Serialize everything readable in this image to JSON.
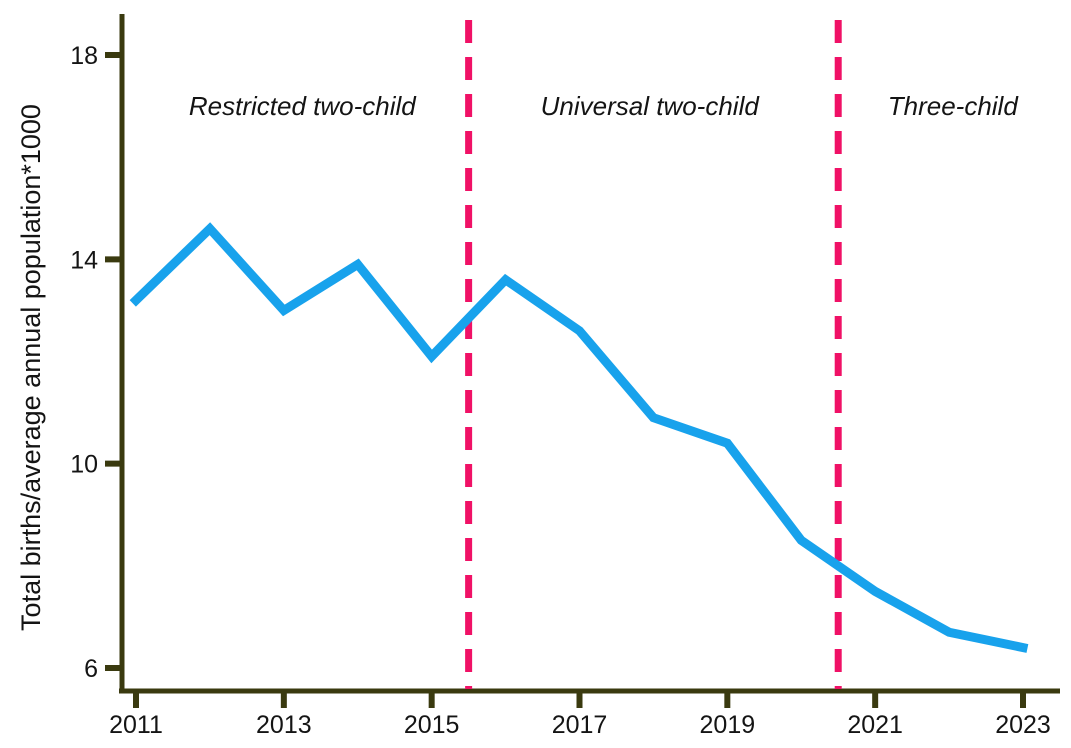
{
  "chart_data": {
    "type": "line",
    "title": "",
    "xlabel": "",
    "ylabel": "Total births/average annual population*1000",
    "x": [
      2011,
      2012,
      2013,
      2014,
      2015,
      2016,
      2017,
      2018,
      2019,
      2020,
      2021,
      2022,
      2023
    ],
    "series": [
      {
        "name": "total-births-per-1000-population",
        "values": [
          13.2,
          14.6,
          13.0,
          13.9,
          12.1,
          13.6,
          12.6,
          10.9,
          10.4,
          8.5,
          7.5,
          6.7,
          6.4
        ]
      }
    ],
    "xticks": [
      2011,
      2013,
      2015,
      2017,
      2019,
      2021,
      2023
    ],
    "yticks": [
      6,
      10,
      14,
      18
    ],
    "xlim": [
      2010.8,
      2023.5
    ],
    "ylim": [
      5.55,
      18.8
    ],
    "grid": false,
    "legend": "none",
    "policy_lines": [
      {
        "x": 2015.5
      },
      {
        "x": 2020.5
      }
    ],
    "annotations": [
      {
        "text": "Restricted two-child",
        "x": 2013.25,
        "y": 17.0
      },
      {
        "text": "Universal two-child",
        "x": 2017.95,
        "y": 17.0
      },
      {
        "text": "Three-child",
        "x": 2022.05,
        "y": 17.0
      }
    ],
    "colors": {
      "line": "#18A2EC",
      "policy_line": "#F01166",
      "axis": "#3A3A0F",
      "text": "#141414"
    }
  }
}
